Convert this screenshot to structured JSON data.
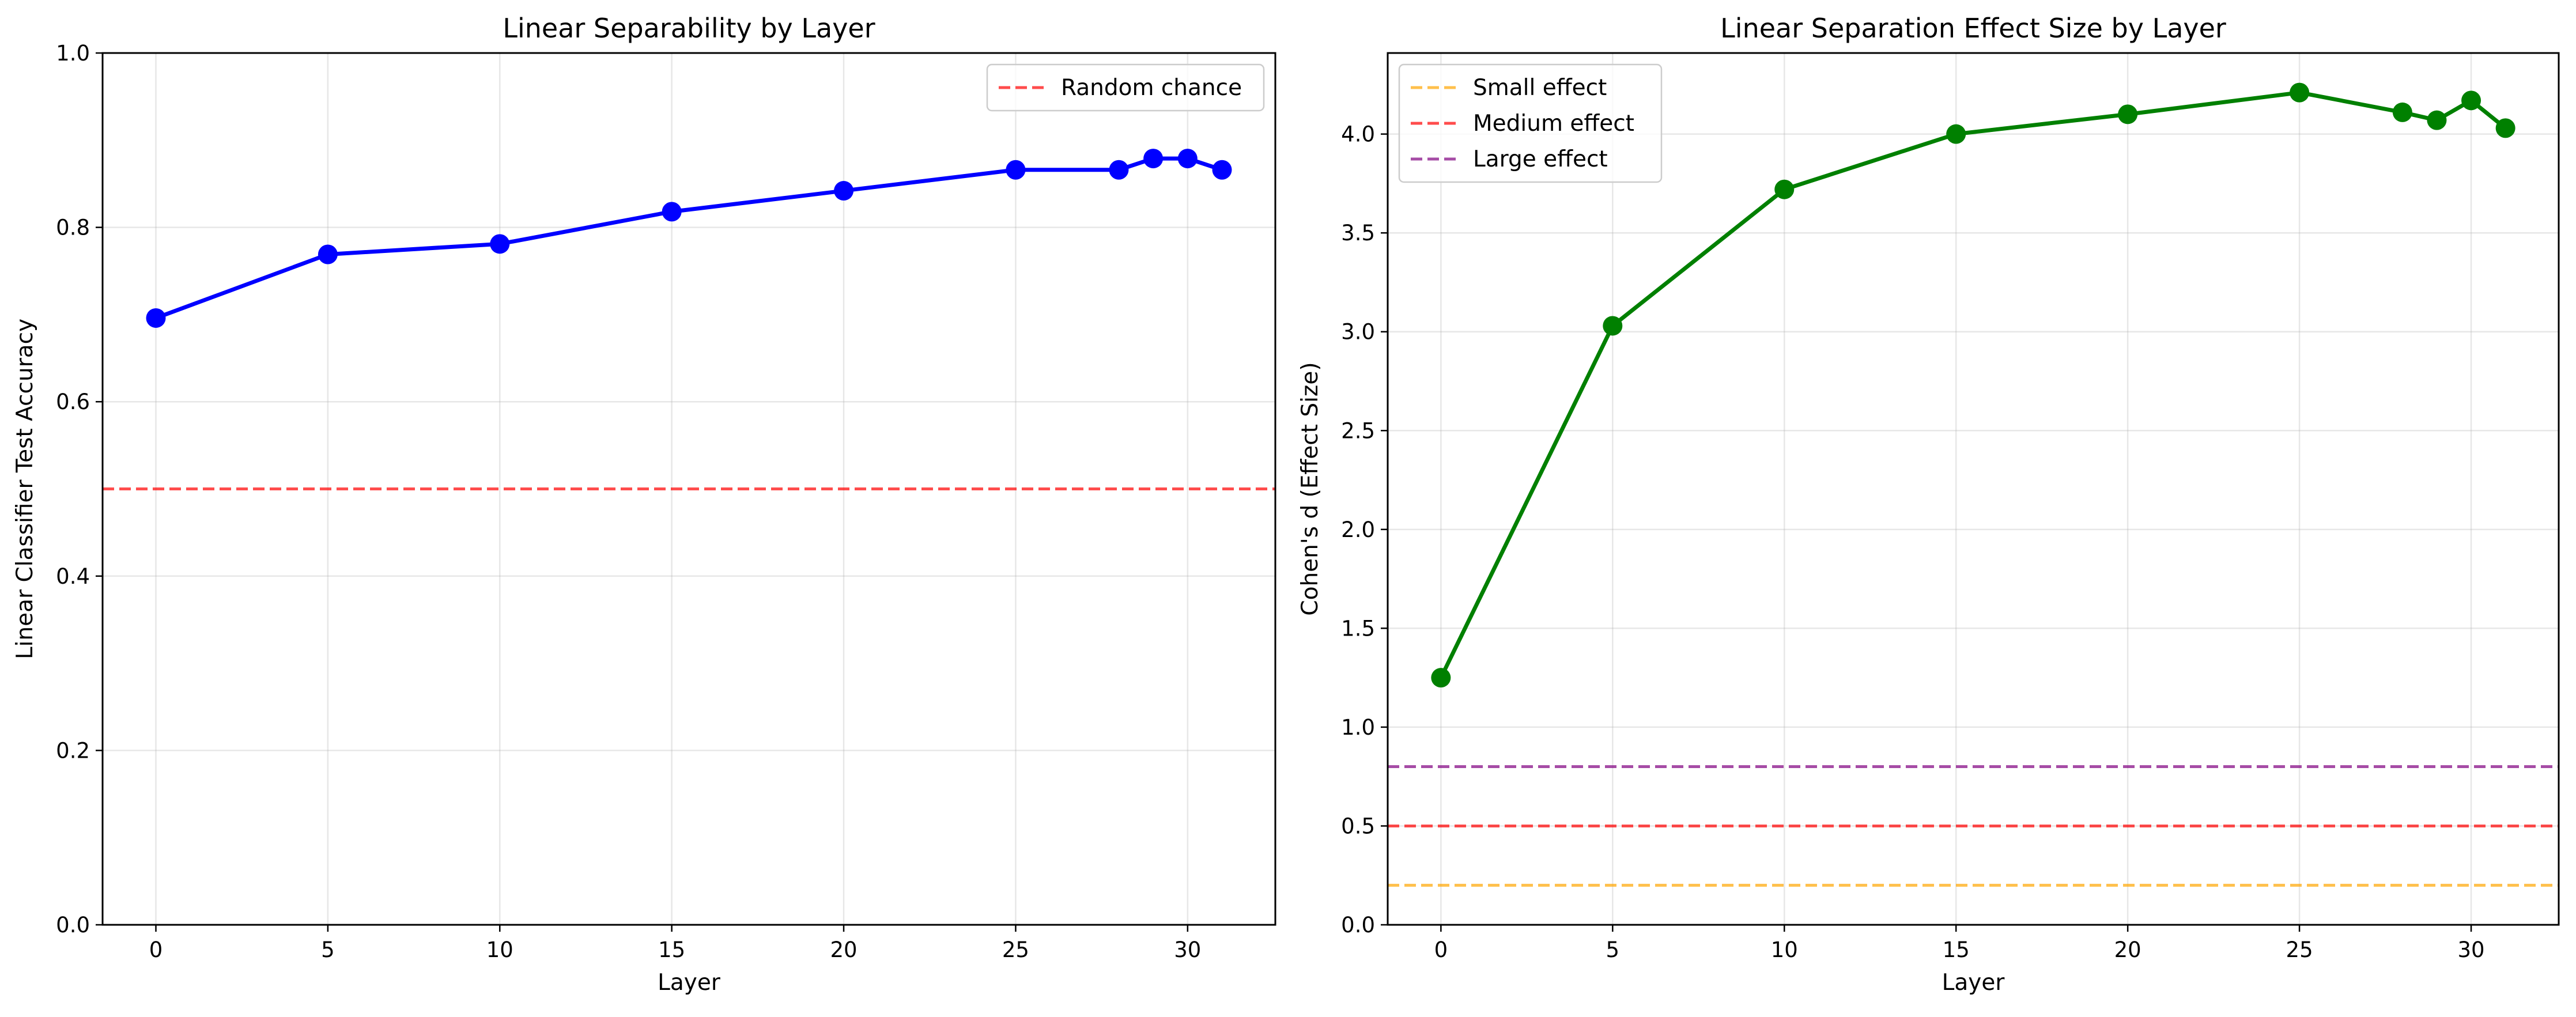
{
  "chart_data": [
    {
      "type": "line",
      "title": "Linear Separability by Layer",
      "xlabel": "Layer",
      "ylabel": "Linear Classifier Test Accuracy",
      "xlim": [
        -1.55,
        32.55
      ],
      "ylim": [
        0.0,
        1.0
      ],
      "xticks": [
        0,
        5,
        10,
        15,
        20,
        25,
        30
      ],
      "yticks": [
        0.0,
        0.2,
        0.4,
        0.6,
        0.8,
        1.0
      ],
      "xtick_labels": [
        "0",
        "5",
        "10",
        "15",
        "20",
        "25",
        "30"
      ],
      "ytick_labels": [
        "0.0",
        "0.2",
        "0.4",
        "0.6",
        "0.8",
        "1.0"
      ],
      "grid": true,
      "legend_position": "top-right",
      "series": [
        {
          "color": "#0000ff",
          "x": [
            0,
            5,
            10,
            15,
            20,
            25,
            28,
            29,
            30,
            31
          ],
          "y": [
            0.696,
            0.769,
            0.781,
            0.818,
            0.842,
            0.866,
            0.866,
            0.879,
            0.879,
            0.866
          ]
        }
      ],
      "reference_lines": [
        {
          "name": "Random chance",
          "y": 0.5,
          "color": "#ff0000"
        }
      ]
    },
    {
      "type": "line",
      "title": "Linear Separation Effect Size by Layer",
      "xlabel": "Layer",
      "ylabel": "Cohen's d (Effect Size)",
      "xlim": [
        -1.55,
        32.55
      ],
      "ylim": [
        0.0,
        4.41
      ],
      "xticks": [
        0,
        5,
        10,
        15,
        20,
        25,
        30
      ],
      "yticks": [
        0.0,
        0.5,
        1.0,
        1.5,
        2.0,
        2.5,
        3.0,
        3.5,
        4.0
      ],
      "xtick_labels": [
        "0",
        "5",
        "10",
        "15",
        "20",
        "25",
        "30"
      ],
      "ytick_labels": [
        "0.0",
        "0.5",
        "1.0",
        "1.5",
        "2.0",
        "2.5",
        "3.0",
        "3.5",
        "4.0"
      ],
      "grid": true,
      "legend_position": "top-left",
      "series": [
        {
          "color": "#008000",
          "x": [
            0,
            5,
            10,
            15,
            20,
            25,
            28,
            29,
            30,
            31
          ],
          "y": [
            1.25,
            3.03,
            3.72,
            4.0,
            4.1,
            4.21,
            4.11,
            4.07,
            4.17,
            4.03
          ]
        }
      ],
      "reference_lines": [
        {
          "name": "Small effect",
          "y": 0.2,
          "color": "#ffa500"
        },
        {
          "name": "Medium effect",
          "y": 0.5,
          "color": "#ff0000"
        },
        {
          "name": "Large effect",
          "y": 0.8,
          "color": "#800080"
        }
      ]
    }
  ]
}
